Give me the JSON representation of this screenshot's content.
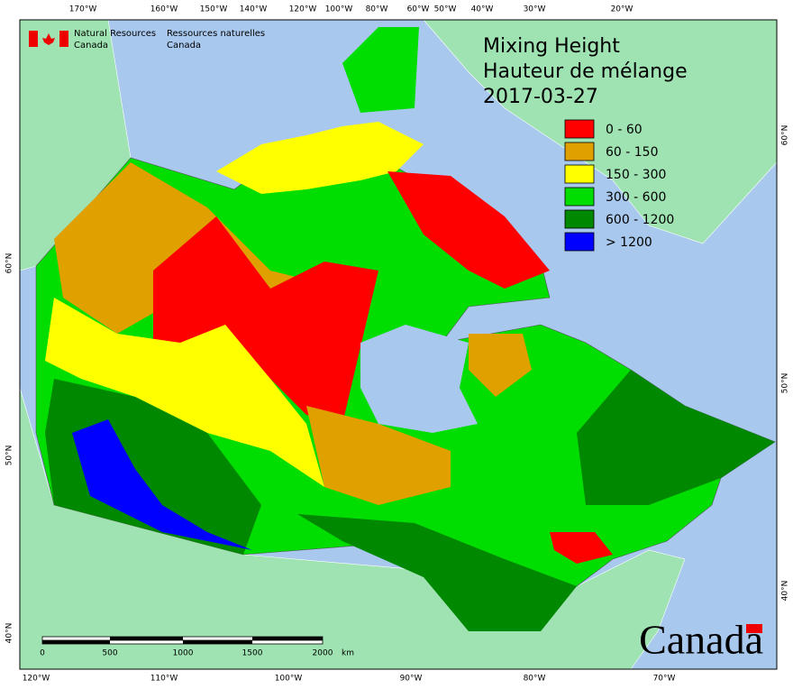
{
  "header": {
    "agency_en": [
      "Natural Resources",
      "Canada"
    ],
    "agency_fr": [
      "Ressources naturelles",
      "Canada"
    ]
  },
  "title": [
    "Mixing Height",
    "Hauteur de mélange",
    "2017-03-27"
  ],
  "legend": [
    {
      "label": "0 - 60",
      "color": "#ff0000"
    },
    {
      "label": "60 - 150",
      "color": "#e0a000"
    },
    {
      "label": "150 - 300",
      "color": "#ffff00"
    },
    {
      "label": "300 - 600",
      "color": "#00dd00"
    },
    {
      "label": "600 - 1200",
      "color": "#008800"
    },
    {
      "label": "> 1200",
      "color": "#0000ff"
    }
  ],
  "top_labels": [
    "170°W",
    "160°W",
    "150°W",
    "140°W",
    "120°W",
    "100°W",
    "80°W",
    "60°W",
    "50°W",
    "40°W",
    "30°W",
    "20°W"
  ],
  "bottom_labels": [
    "120°W",
    "110°W",
    "100°W",
    "90°W",
    "80°W",
    "70°W"
  ],
  "left_labels": [
    "60°N",
    "50°N",
    "40°N"
  ],
  "right_labels": [
    "60°N",
    "50°N",
    "40°N"
  ],
  "scale_bar": {
    "labels": [
      "0",
      "500",
      "1000",
      "1500",
      "2000"
    ],
    "unit": "km"
  },
  "wordmark": "Canada"
}
